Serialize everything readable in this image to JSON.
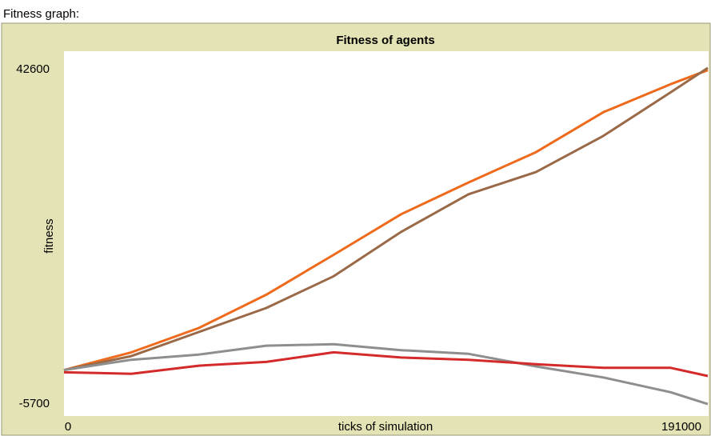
{
  "chart_data": {
    "type": "line",
    "widget_label": "Fitness graph:",
    "title": "Fitness of agents",
    "xlabel": "ticks of simulation",
    "ylabel": "fitness",
    "x": [
      0,
      20000,
      40000,
      60000,
      80000,
      100000,
      120000,
      140000,
      160000,
      180000,
      191000
    ],
    "xlim": [
      0,
      191000
    ],
    "xticks": [
      0,
      191000
    ],
    "ylim": [
      -5700,
      42600
    ],
    "yticks": [
      -5700,
      42600
    ],
    "series": [
      {
        "color": "#ee6a1c",
        "values": [
          300,
          2700,
          6000,
          10500,
          15900,
          21400,
          25700,
          29800,
          35200,
          39000,
          40900
        ]
      },
      {
        "color": "#9a6a48",
        "values": [
          300,
          2200,
          5450,
          8700,
          13000,
          19000,
          24100,
          27100,
          32000,
          37900,
          41200
        ]
      },
      {
        "color": "#8e8e8e",
        "values": [
          300,
          1700,
          2400,
          3600,
          3800,
          3000,
          2500,
          800,
          -700,
          -2700,
          -4300
        ]
      },
      {
        "color": "#d42a2a",
        "values": [
          0,
          -200,
          900,
          1400,
          2700,
          2000,
          1700,
          1100,
          600,
          600,
          -500
        ]
      }
    ]
  }
}
